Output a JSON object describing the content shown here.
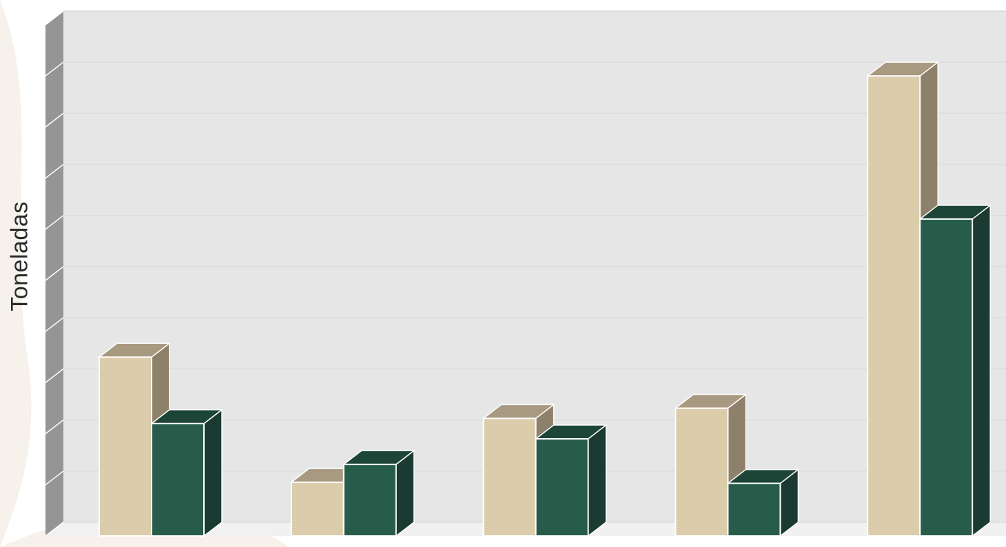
{
  "chart_data": {
    "type": "bar",
    "style": "3d-clustered-column",
    "title": "",
    "xlabel": "",
    "ylabel": "Toneladas",
    "categories": [
      "",
      "",
      "",
      "",
      ""
    ],
    "series": [
      {
        "color": "#dbccac",
        "top_color": "#a89a80",
        "side_color": "#8e816c",
        "values": [
          3.5,
          1.05,
          2.3,
          2.5,
          9.0
        ]
      },
      {
        "color": "#275c4b",
        "top_color": "#1c4538",
        "side_color": "#1b3a31",
        "values": [
          2.2,
          1.4,
          1.9,
          1.03,
          6.2
        ]
      }
    ],
    "ylim": [
      0,
      10
    ],
    "grid": true,
    "legend": "none"
  },
  "colors": {
    "back_wall": "#e6e6e6",
    "side_wall": "#959595",
    "floor": "#f1f1f1",
    "background_motif": "#f6f1ea"
  }
}
